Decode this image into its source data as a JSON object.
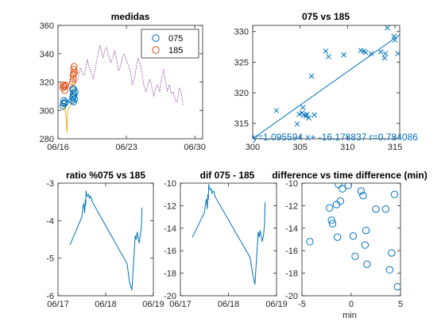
{
  "chart_data": [
    {
      "id": "medidas",
      "type": "line",
      "title": "medidas",
      "xlabel": "",
      "ylabel": "",
      "xlim": [
        0,
        14.8
      ],
      "ylim": [
        280,
        360
      ],
      "xticks": [
        {
          "v": 0,
          "label": "06/16"
        },
        {
          "v": 7,
          "label": "06/23"
        },
        {
          "v": 14,
          "label": "06/30"
        }
      ],
      "yticks": [
        280,
        300,
        320,
        340,
        360
      ],
      "legend": {
        "placement": "top-right",
        "entries": [
          {
            "label": "075",
            "color": "#0072BD"
          },
          {
            "label": "185",
            "color": "#D95319"
          }
        ]
      },
      "series": [
        {
          "name": "075",
          "style": "circles",
          "color": "#0072BD",
          "x": [
            0.5,
            0.55,
            0.6,
            0.7,
            0.75,
            1.45,
            1.5,
            1.55,
            1.6,
            1.65,
            1.7,
            1.75,
            1.5,
            1.55,
            1.6
          ],
          "y": [
            303,
            305,
            307,
            305,
            306,
            307,
            309,
            312,
            315,
            311,
            308,
            313,
            315,
            310,
            306
          ]
        },
        {
          "name": "185",
          "style": "circles",
          "color": "#D95319",
          "x": [
            0.5,
            0.55,
            0.6,
            0.7,
            0.75,
            0.8,
            1.5,
            1.55,
            1.6,
            1.65,
            1.7,
            1.55,
            1.6
          ],
          "y": [
            316,
            318,
            317,
            314,
            317,
            318,
            320,
            325,
            329,
            331,
            327,
            322,
            326
          ]
        },
        {
          "name": "",
          "style": "line",
          "color": "#EDB120",
          "x": [
            0.55,
            0.6,
            0.7,
            0.85,
            0.9,
            1.0,
            1.4,
            1.5,
            1.6,
            1.7
          ],
          "y": [
            300,
            305,
            303,
            293,
            284,
            300,
            305,
            315,
            325,
            326
          ]
        },
        {
          "name": "",
          "style": "dotted",
          "color": "#7E2F8E",
          "x": [
            1.3,
            1.8,
            2.0,
            2.2,
            2.3,
            2.5,
            2.7,
            2.9,
            3.0,
            3.2,
            3.4,
            3.6,
            3.7,
            3.9,
            4.1,
            4.3,
            4.5,
            4.6,
            4.8,
            5.0,
            5.2,
            5.4,
            5.6,
            5.8,
            6.0,
            6.2,
            6.4,
            6.6,
            6.8,
            7.0,
            7.2,
            7.4,
            7.6,
            7.8,
            8.0,
            8.2,
            8.4,
            8.6,
            8.8,
            9.0,
            9.2,
            9.4,
            9.6,
            9.8,
            10.0,
            10.2,
            10.4,
            10.6,
            10.8,
            11.0,
            11.2,
            11.4,
            11.6,
            11.8,
            12.0,
            12.2,
            12.4,
            12.6,
            12.8
          ],
          "y": [
            322,
            320,
            321,
            328,
            330,
            326,
            325,
            332,
            336,
            330,
            327,
            322,
            325,
            333,
            340,
            346,
            340,
            337,
            343,
            344,
            338,
            334,
            337,
            342,
            336,
            328,
            331,
            338,
            340,
            335,
            332,
            328,
            318,
            322,
            330,
            337,
            333,
            326,
            317,
            313,
            318,
            322,
            316,
            310,
            316,
            318,
            313,
            323,
            329,
            320,
            314,
            318,
            312,
            313,
            307,
            306,
            316,
            313,
            304
          ]
        }
      ]
    },
    {
      "id": "075vs185",
      "type": "scatter",
      "title": "075 vs 185",
      "xlim": [
        300,
        315.5
      ],
      "ylim": [
        312.5,
        331
      ],
      "xticks": [
        300,
        305,
        310,
        315
      ],
      "yticks": [
        315,
        320,
        325,
        330
      ],
      "marker": "x",
      "color": "#0072BD",
      "points": [
        [
          302.5,
          317.1
        ],
        [
          304.7,
          314.9
        ],
        [
          304.9,
          316.5
        ],
        [
          305.2,
          316.7
        ],
        [
          305.3,
          317.6
        ],
        [
          305.4,
          316.4
        ],
        [
          305.6,
          316.2
        ],
        [
          305.7,
          316.5
        ],
        [
          305.9,
          315.9
        ],
        [
          306.5,
          316.4
        ],
        [
          306.2,
          322.7
        ],
        [
          307.7,
          326.8
        ],
        [
          308.0,
          325.9
        ],
        [
          309.6,
          326.2
        ],
        [
          311.4,
          326.9
        ],
        [
          311.7,
          326.8
        ],
        [
          311.9,
          326.6
        ],
        [
          312.5,
          326.4
        ],
        [
          313.5,
          326.7
        ],
        [
          313.9,
          325.7
        ],
        [
          314.0,
          326.4
        ],
        [
          314.2,
          330.6
        ],
        [
          314.9,
          329.2
        ],
        [
          315.0,
          328.6
        ],
        [
          315.3,
          326.4
        ]
      ],
      "fit": {
        "slope": 1.095594,
        "intercept": -16.178837,
        "r": 0.784086
      },
      "annotation": "y=1.095594 x+ -16.178837 r=0.784086"
    },
    {
      "id": "ratio",
      "type": "line",
      "title": "ratio %075 vs 185",
      "xlim": [
        0,
        2
      ],
      "ylim": [
        -6,
        -3
      ],
      "xticks": [
        {
          "v": 0,
          "label": "06/17"
        },
        {
          "v": 1,
          "label": "06/18"
        },
        {
          "v": 2,
          "label": "06/19"
        }
      ],
      "yticks": [
        -6,
        -5,
        -4,
        -3
      ],
      "color": "#0072BD",
      "x": [
        0.25,
        0.5,
        0.52,
        0.54,
        0.56,
        0.57,
        0.58,
        0.59,
        0.6,
        0.62,
        0.64,
        0.66,
        0.68,
        0.7,
        0.72,
        1.45,
        1.5,
        1.55,
        1.6,
        1.62,
        1.64,
        1.66,
        1.7,
        1.73,
        1.75,
        1.76
      ],
      "y": [
        -4.65,
        -3.9,
        -3.65,
        -3.55,
        -3.8,
        -3.45,
        -3.6,
        -3.2,
        -3.3,
        -3.35,
        -3.3,
        -3.4,
        -3.35,
        -3.4,
        -3.5,
        -5.15,
        -5.65,
        -5.85,
        -4.8,
        -4.4,
        -4.5,
        -4.3,
        -4.6,
        -4.35,
        -4.15,
        -3.65
      ]
    },
    {
      "id": "dif",
      "type": "line",
      "title": "dif 075 - 185",
      "xlim": [
        0,
        2
      ],
      "ylim": [
        -20,
        -10
      ],
      "xticks": [
        {
          "v": 0,
          "label": "06/17"
        },
        {
          "v": 1,
          "label": "06/18"
        },
        {
          "v": 2,
          "label": "06/19"
        }
      ],
      "yticks": [
        -20,
        -18,
        -16,
        -14,
        -12,
        -10
      ],
      "color": "#0072BD",
      "x": [
        0.25,
        0.5,
        0.52,
        0.54,
        0.56,
        0.57,
        0.58,
        0.59,
        0.6,
        0.62,
        0.64,
        0.66,
        0.68,
        0.7,
        0.72,
        1.45,
        1.5,
        1.55,
        1.6,
        1.62,
        1.64,
        1.66,
        1.7,
        1.73,
        1.75,
        1.76
      ],
      "y": [
        -14.8,
        -12.6,
        -11.9,
        -11.4,
        -12.3,
        -11.0,
        -11.5,
        -10.1,
        -10.4,
        -10.6,
        -10.5,
        -10.9,
        -10.7,
        -10.8,
        -11.2,
        -16.6,
        -18.0,
        -19.0,
        -15.6,
        -14.3,
        -14.8,
        -14.2,
        -15.2,
        -14.6,
        -13.6,
        -11.7
      ]
    },
    {
      "id": "diffvstime",
      "type": "scatter",
      "title": "difference vs time difference (min)",
      "xlabel": "min",
      "xlim": [
        -5,
        5
      ],
      "ylim": [
        -20,
        -10
      ],
      "xticks": [
        -5,
        0,
        5
      ],
      "yticks": [
        -20,
        -18,
        -16,
        -14,
        -12,
        -10
      ],
      "marker": "o",
      "color": "#0072BD",
      "points": [
        [
          -4.2,
          -15.2
        ],
        [
          -2.2,
          -12.2
        ],
        [
          -2.0,
          -13.3
        ],
        [
          -1.9,
          -13.6
        ],
        [
          -1.5,
          -11.9
        ],
        [
          -1.4,
          -14.8
        ],
        [
          -1.3,
          -10.1
        ],
        [
          -1.1,
          -11.6
        ],
        [
          -0.9,
          -10.5
        ],
        [
          -0.3,
          -10.2
        ],
        [
          0.2,
          -14.7
        ],
        [
          0.4,
          -16.5
        ],
        [
          1.0,
          -10.7
        ],
        [
          1.2,
          -11.1
        ],
        [
          1.4,
          -15.5
        ],
        [
          1.5,
          -14.2
        ],
        [
          1.6,
          -17.2
        ],
        [
          2.5,
          -12.3
        ],
        [
          3.5,
          -12.3
        ],
        [
          3.9,
          -17.7
        ],
        [
          4.1,
          -16.2
        ],
        [
          4.4,
          -11.0
        ],
        [
          4.7,
          -19.2
        ]
      ]
    }
  ]
}
